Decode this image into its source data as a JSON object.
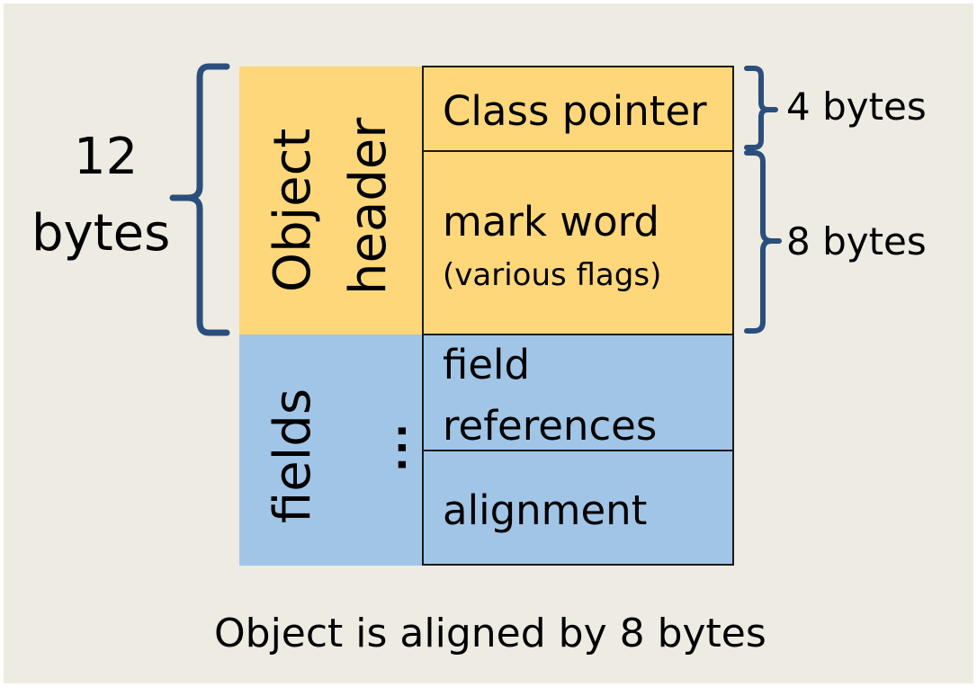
{
  "diagram": {
    "header_label_line1": "Object",
    "header_label_line2": "header",
    "fields_label": "fields",
    "fields_ellipsis": "...",
    "cells": {
      "class_pointer": "Class pointer",
      "mark_word": "mark word",
      "mark_word_note": "(various flags)",
      "field_refs_line1": "field",
      "field_refs_line2": "references",
      "alignment": "alignment"
    },
    "sizes": {
      "total_line1": "12",
      "total_line2": "bytes",
      "class_pointer_size": "4 bytes",
      "mark_word_size": "8 bytes"
    },
    "caption": "Object is aligned by 8 bytes"
  },
  "colors": {
    "header_fill": "#fdd77a",
    "fields_fill": "#a1c5e6",
    "brace": "#2b4f7d",
    "background": "#eeebe2"
  }
}
